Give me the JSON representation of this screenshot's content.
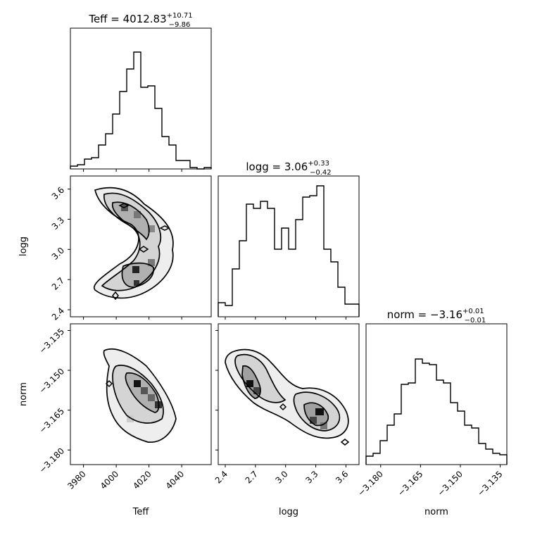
{
  "chart_data": {
    "type": "corner",
    "parameters": [
      {
        "name": "Teff",
        "label": "Teff",
        "median": "4012.83",
        "plus": "+10.71",
        "minus": "−9.86",
        "range": [
          3972,
          4058
        ],
        "ticks": [
          3980,
          4000,
          4020,
          4040
        ],
        "tick_labels": [
          "3980",
          "4000",
          "4020",
          "4040"
        ]
      },
      {
        "name": "logg",
        "label": "logg",
        "median": "3.06",
        "plus": "+0.33",
        "minus": "−0.42",
        "range": [
          2.33,
          3.73
        ],
        "ticks": [
          2.4,
          2.7,
          3.0,
          3.3,
          3.6
        ],
        "tick_labels": [
          "2.4",
          "2.7",
          "3.0",
          "3.3",
          "3.6"
        ]
      },
      {
        "name": "norm",
        "label": "norm",
        "median": "−3.16",
        "plus": "+0.01",
        "minus": "−0.01",
        "range": [
          -3.1855,
          -3.1325
        ],
        "ticks": [
          -3.18,
          -3.165,
          -3.15,
          -3.135
        ],
        "tick_labels": [
          "−3.180",
          "−3.165",
          "−3.150",
          "−3.135"
        ]
      }
    ],
    "titles": [
      {
        "prefix": "Teff = ",
        "value": "4012.83",
        "sup": "+10.71",
        "sub": "−9.86"
      },
      {
        "prefix": "logg = ",
        "value": "3.06",
        "sup": "+0.33",
        "sub": "−0.42"
      },
      {
        "prefix": "norm = ",
        "value": "−3.16",
        "sup": "+0.01",
        "sub": "−0.01"
      }
    ],
    "histograms": {
      "Teff": [
        0.02,
        0.03,
        0.07,
        0.08,
        0.17,
        0.25,
        0.39,
        0.55,
        0.71,
        0.83,
        0.58,
        0.59,
        0.43,
        0.23,
        0.17,
        0.06,
        0.06,
        0.01,
        0.0,
        0.01
      ],
      "logg": [
        0.1,
        0.08,
        0.34,
        0.54,
        0.8,
        0.77,
        0.82,
        0.77,
        0.48,
        0.63,
        0.48,
        0.69,
        0.85,
        0.86,
        0.93,
        0.48,
        0.39,
        0.21,
        0.09,
        0.09
      ],
      "norm": [
        0.06,
        0.08,
        0.17,
        0.28,
        0.36,
        0.57,
        0.58,
        0.75,
        0.72,
        0.71,
        0.6,
        0.58,
        0.44,
        0.38,
        0.28,
        0.26,
        0.15,
        0.11,
        0.08,
        0.07
      ]
    },
    "correlations": {
      "logg_vs_Teff": "bimodal arc",
      "norm_vs_Teff": "negative correlation",
      "norm_vs_logg": "negative correlation"
    }
  }
}
